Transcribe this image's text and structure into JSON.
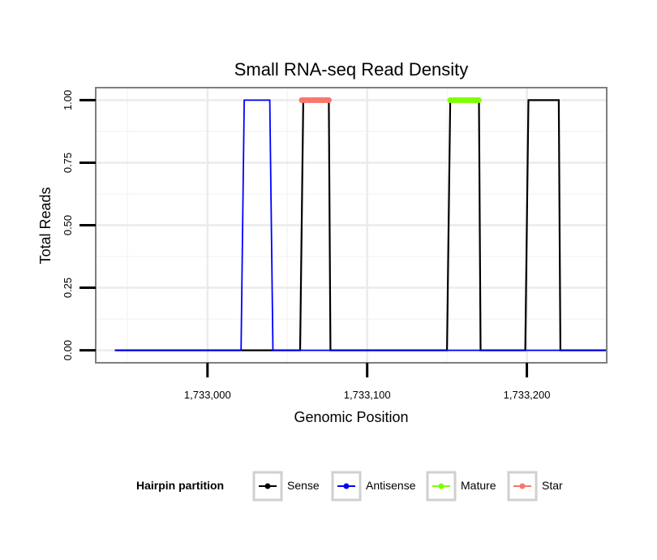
{
  "chart_data": {
    "type": "line",
    "title": "Small RNA-seq Read Density",
    "xlabel": "Genomic Position",
    "ylabel": "Total Reads",
    "xlim": [
      1732930,
      1733250
    ],
    "ylim": [
      -0.05,
      1.05
    ],
    "x_ticks": [
      {
        "value": 1733000,
        "label": "1,733,000"
      },
      {
        "value": 1733100,
        "label": "1,733,100"
      },
      {
        "value": 1733200,
        "label": "1,733,200"
      }
    ],
    "y_ticks": [
      {
        "value": 0.0,
        "label": "0.00"
      },
      {
        "value": 0.25,
        "label": "0.25"
      },
      {
        "value": 0.5,
        "label": "0.50"
      },
      {
        "value": 0.75,
        "label": "0.75"
      },
      {
        "value": 1.0,
        "label": "1.00"
      }
    ],
    "grid": true,
    "series": [
      {
        "name": "Sense",
        "color": "#000000",
        "x": [
          1732942,
          1733058,
          1733060,
          1733076,
          1733077,
          1733150,
          1733152,
          1733170,
          1733171,
          1733199,
          1733201,
          1733220,
          1733221,
          1733250
        ],
        "y": [
          0,
          0,
          1,
          1,
          0,
          0,
          1,
          1,
          0,
          0,
          1,
          1,
          0,
          0
        ]
      },
      {
        "name": "Antisense",
        "color": "#0000ff",
        "x": [
          1732942,
          1733021,
          1733023,
          1733039,
          1733041,
          1733250
        ],
        "y": [
          0,
          0,
          1,
          1,
          0,
          0
        ]
      },
      {
        "name": "Mature",
        "color": "#80ff00",
        "x": [
          1733152,
          1733170
        ],
        "y": [
          1,
          1
        ]
      },
      {
        "name": "Star",
        "color": "#f8766d",
        "x": [
          1733059,
          1733076
        ],
        "y": [
          1,
          1
        ]
      }
    ],
    "legend": {
      "title": "Hairpin partition",
      "position": "bottom",
      "entries": [
        {
          "label": "Sense",
          "color": "#000000"
        },
        {
          "label": "Antisense",
          "color": "#0000ff"
        },
        {
          "label": "Mature",
          "color": "#80ff00"
        },
        {
          "label": "Star",
          "color": "#f8766d"
        }
      ]
    }
  }
}
